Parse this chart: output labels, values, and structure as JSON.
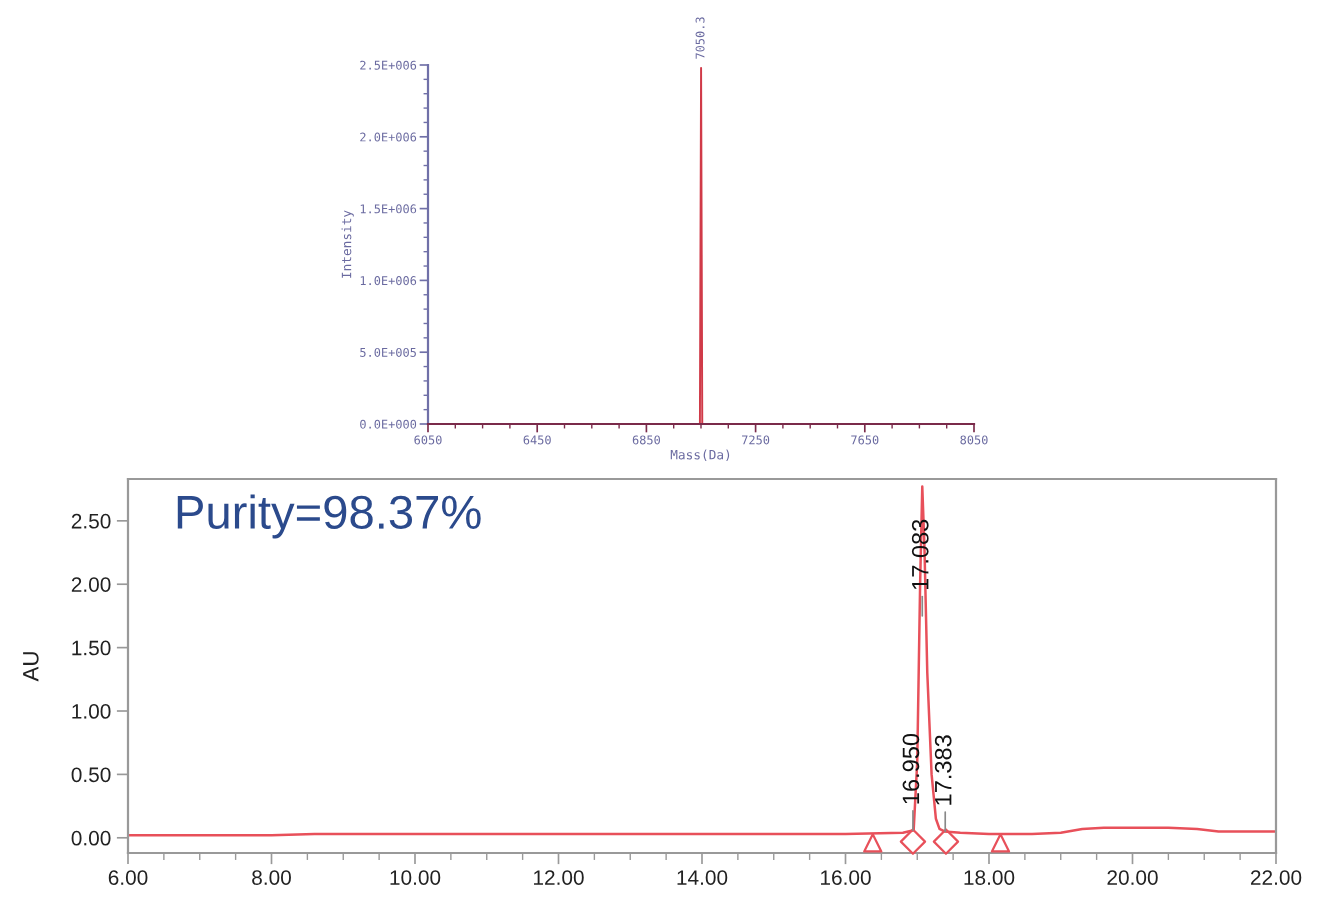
{
  "chart_data": [
    {
      "type": "line",
      "xlabel": "Mass(Da)",
      "ylabel": "Intensity",
      "x": [
        6050,
        7046,
        7050.3,
        7054.6,
        8050
      ],
      "values": [
        0,
        0,
        2480000,
        0,
        0
      ],
      "color": "#d03a48",
      "xlim": [
        6050,
        8050
      ],
      "xticks": [
        6050,
        {
          "value": 6150,
          "label": null
        },
        {
          "value": 6250,
          "label": null
        },
        {
          "value": 6350,
          "label": null
        },
        6450,
        {
          "value": 6550,
          "label": null
        },
        {
          "value": 6650,
          "label": null
        },
        {
          "value": 6750,
          "label": null
        },
        6850,
        {
          "value": 6950,
          "label": null
        },
        {
          "value": 7050,
          "label": null
        },
        {
          "value": 7150,
          "label": null
        },
        7250,
        {
          "value": 7350,
          "label": null
        },
        {
          "value": 7450,
          "label": null
        },
        {
          "value": 7550,
          "label": null
        },
        7650,
        {
          "value": 7750,
          "label": null
        },
        {
          "value": 7850,
          "label": null
        },
        {
          "value": 7950,
          "label": null
        },
        8050
      ],
      "ylim": [
        0,
        2500000
      ],
      "yticks": [
        {
          "value": 0,
          "label": "0.0E+000"
        },
        {
          "value": 100000,
          "label": null
        },
        {
          "value": 200000,
          "label": null
        },
        {
          "value": 300000,
          "label": null
        },
        {
          "value": 400000,
          "label": null
        },
        {
          "value": 500000,
          "label": "5.0E+005"
        },
        {
          "value": 600000,
          "label": null
        },
        {
          "value": 700000,
          "label": null
        },
        {
          "value": 800000,
          "label": null
        },
        {
          "value": 900000,
          "label": null
        },
        {
          "value": 1000000,
          "label": "1.0E+006"
        },
        {
          "value": 1100000,
          "label": null
        },
        {
          "value": 1200000,
          "label": null
        },
        {
          "value": 1300000,
          "label": null
        },
        {
          "value": 1400000,
          "label": null
        },
        {
          "value": 1500000,
          "label": "1.5E+006"
        },
        {
          "value": 1600000,
          "label": null
        },
        {
          "value": 1700000,
          "label": null
        },
        {
          "value": 1800000,
          "label": null
        },
        {
          "value": 1900000,
          "label": null
        },
        {
          "value": 2000000,
          "label": "2.0E+006"
        },
        {
          "value": 2100000,
          "label": null
        },
        {
          "value": 2200000,
          "label": null
        },
        {
          "value": 2300000,
          "label": null
        },
        {
          "value": 2400000,
          "label": null
        },
        {
          "value": 2500000,
          "label": "2.5E+006"
        }
      ],
      "annotations": [
        {
          "text": "7050.3",
          "x": 7050.3,
          "y": 2480000
        }
      ]
    },
    {
      "type": "line",
      "ylabel": "AU",
      "xlim": [
        6,
        22
      ],
      "xticks": [
        {
          "value": 6,
          "label": "6.00"
        },
        {
          "value": 6.5,
          "label": null
        },
        {
          "value": 7,
          "label": null
        },
        {
          "value": 7.5,
          "label": null
        },
        {
          "value": 8,
          "label": "8.00"
        },
        {
          "value": 8.5,
          "label": null
        },
        {
          "value": 9,
          "label": null
        },
        {
          "value": 9.5,
          "label": null
        },
        {
          "value": 10,
          "label": "10.00"
        },
        {
          "value": 10.5,
          "label": null
        },
        {
          "value": 11,
          "label": null
        },
        {
          "value": 11.5,
          "label": null
        },
        {
          "value": 12,
          "label": "12.00"
        },
        {
          "value": 12.5,
          "label": null
        },
        {
          "value": 13,
          "label": null
        },
        {
          "value": 13.5,
          "label": null
        },
        {
          "value": 14,
          "label": "14.00"
        },
        {
          "value": 14.5,
          "label": null
        },
        {
          "value": 15,
          "label": null
        },
        {
          "value": 15.5,
          "label": null
        },
        {
          "value": 16,
          "label": "16.00"
        },
        {
          "value": 16.5,
          "label": null
        },
        {
          "value": 17,
          "label": null
        },
        {
          "value": 17.5,
          "label": null
        },
        {
          "value": 18,
          "label": "18.00"
        },
        {
          "value": 18.5,
          "label": null
        },
        {
          "value": 19,
          "label": null
        },
        {
          "value": 19.5,
          "label": null
        },
        {
          "value": 20,
          "label": "20.00"
        },
        {
          "value": 20.5,
          "label": null
        },
        {
          "value": 21,
          "label": null
        },
        {
          "value": 21.5,
          "label": null
        },
        {
          "value": 22,
          "label": "22.00"
        }
      ],
      "ylim": [
        -0.12,
        2.83
      ],
      "yticks": [
        {
          "value": 0,
          "label": "0.00"
        },
        {
          "value": 0.5,
          "label": "0.50"
        },
        {
          "value": 1,
          "label": "1.00"
        },
        {
          "value": 1.5,
          "label": "1.50"
        },
        {
          "value": 2,
          "label": "2.00"
        },
        {
          "value": 2.5,
          "label": "2.50"
        }
      ],
      "series": [
        {
          "color": "#e8505a",
          "x": [
            6.0,
            8.0,
            8.6,
            10.0,
            12.0,
            14.0,
            16.0,
            16.8,
            16.95,
            17.0,
            17.04,
            17.07,
            17.1,
            17.14,
            17.2,
            17.26,
            17.31,
            17.38,
            17.6,
            18.0,
            18.6,
            19.0,
            19.3,
            19.6,
            20.0,
            20.5,
            20.9,
            21.2,
            21.5,
            22.0
          ],
          "values": [
            0.02,
            0.02,
            0.03,
            0.03,
            0.03,
            0.03,
            0.03,
            0.04,
            0.06,
            0.6,
            2.0,
            2.77,
            2.3,
            1.3,
            0.5,
            0.15,
            0.07,
            0.05,
            0.04,
            0.03,
            0.03,
            0.04,
            0.07,
            0.08,
            0.08,
            0.08,
            0.07,
            0.05,
            0.05,
            0.05
          ]
        },
        {
          "type": "scatter",
          "marker": "triangle",
          "color": "#e8505a",
          "x": [
            16.38,
            18.16
          ],
          "values": [
            -0.04,
            -0.04
          ]
        },
        {
          "type": "scatter",
          "marker": "diamond",
          "color": "#e8505a",
          "x": [
            16.94,
            17.4
          ],
          "values": [
            -0.03,
            -0.03
          ]
        }
      ],
      "annotations": [
        "Purity=98.37%",
        {
          "text": "17.083",
          "x": 17.07,
          "y": 1.75
        },
        {
          "text": "16.950",
          "x": 16.94,
          "y": 0.06
        },
        {
          "text": "17.383",
          "x": 17.39,
          "y": 0.05
        }
      ]
    }
  ]
}
